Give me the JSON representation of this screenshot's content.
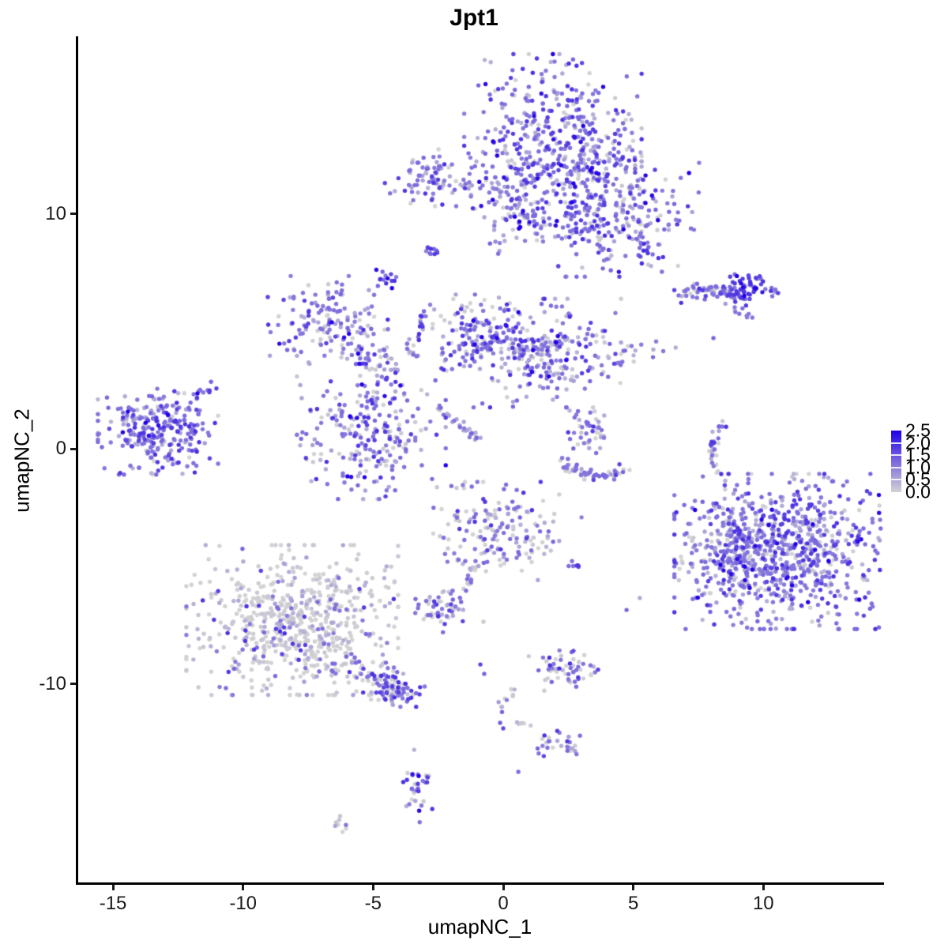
{
  "title": "Jpt1",
  "axes": {
    "x": {
      "label": "umapNC_1",
      "ticks": [
        -15,
        -10,
        -5,
        0,
        5,
        10
      ],
      "range": [
        -16.3,
        14.6
      ]
    },
    "y": {
      "label": "umapNC_2",
      "ticks": [
        10,
        0,
        -10
      ],
      "range": [
        -18.5,
        17.5
      ]
    }
  },
  "legend": {
    "tick_values": [
      2.5,
      2.0,
      1.5,
      1.0,
      0.5,
      0.0
    ],
    "tick_labels": [
      "2.5",
      "2.0",
      "1.5",
      "1.0",
      "0.5",
      "0.0"
    ],
    "low_color": "#D3D3D3",
    "high_color": "#2100E8",
    "max": 2.5
  },
  "chart_data": {
    "type": "scatter",
    "title": "Jpt1",
    "xlabel": "umapNC_1",
    "ylabel": "umapNC_2",
    "xlim": [
      -16.3,
      14.6
    ],
    "ylim": [
      -18.5,
      17.5
    ],
    "grid": false,
    "legend_position": "right",
    "color_scale": {
      "low": "#D3D3D3",
      "high": "#2100E8",
      "domain": [
        0,
        2.5
      ]
    },
    "value_bins": {
      "grey": 0.03,
      "light": 0.5,
      "med": 1.15,
      "str": 1.8,
      "dark": 2.45
    },
    "point_radius": 2.7,
    "clusters": [
      {
        "name": "top-main-upper",
        "type": "blob",
        "center": [
          1.91,
          13.38
        ],
        "sd": [
          1.55,
          1.55
        ],
        "n": 340,
        "mix": {
          "grey": 0.13,
          "light": 0.22,
          "med": 0.41,
          "str": 0.2,
          "dark": 0.04
        }
      },
      {
        "name": "top-main-right",
        "type": "blob",
        "center": [
          4.34,
          9.85
        ],
        "sd": [
          1.45,
          1.15
        ],
        "n": 260,
        "mix": {
          "grey": 0.13,
          "light": 0.22,
          "med": 0.41,
          "str": 0.2,
          "dark": 0.04
        }
      },
      {
        "name": "top-main-lowerleft",
        "type": "blob",
        "center": [
          0.7,
          10.52
        ],
        "sd": [
          0.85,
          1.05
        ],
        "n": 120,
        "mix": {
          "grey": 0.13,
          "light": 0.22,
          "med": 0.41,
          "str": 0.2,
          "dark": 0.04
        }
      },
      {
        "name": "top-main-bridge",
        "type": "blob",
        "center": [
          2.98,
          11.87
        ],
        "sd": [
          0.95,
          0.9
        ],
        "n": 110,
        "mix": {
          "grey": 0.13,
          "light": 0.22,
          "med": 0.41,
          "str": 0.2,
          "dark": 0.04
        }
      },
      {
        "name": "top-left-small",
        "type": "blob",
        "center": [
          -2.79,
          11.53
        ],
        "sd": [
          0.8,
          0.55
        ],
        "n": 85,
        "mix": {
          "grey": 0.15,
          "light": 0.25,
          "med": 0.45,
          "str": 0.15
        }
      },
      {
        "name": "top-left-arm",
        "type": "line",
        "from": [
          -1.88,
          11.26
        ],
        "to": [
          0.55,
          10.92
        ],
        "jitter": 0.15,
        "n": 20,
        "mix": {
          "grey": 0.15,
          "light": 0.25,
          "med": 0.45,
          "str": 0.15
        }
      },
      {
        "name": "tiny-clump-a",
        "type": "blob",
        "center": [
          -2.79,
          8.47
        ],
        "sd": [
          0.15,
          0.12
        ],
        "n": 10,
        "mix": {
          "med": 0.5,
          "str": 0.5
        }
      },
      {
        "name": "tiny-clump-b",
        "type": "blob",
        "center": [
          -4.46,
          7.23
        ],
        "sd": [
          0.2,
          0.18
        ],
        "n": 14,
        "mix": {
          "med": 0.35,
          "str": 0.5,
          "dark": 0.15
        }
      },
      {
        "name": "right-band",
        "type": "line",
        "from": [
          6.62,
          6.59
        ],
        "to": [
          8.9,
          6.72
        ],
        "jitter": 0.18,
        "n": 55,
        "mix": {
          "grey": 0.15,
          "light": 0.2,
          "med": 0.45,
          "str": 0.2
        }
      },
      {
        "name": "right-band-knot",
        "type": "blob",
        "center": [
          9.44,
          6.76
        ],
        "sd": [
          0.55,
          0.32
        ],
        "n": 70,
        "mix": {
          "light": 0.06,
          "med": 0.32,
          "str": 0.48,
          "dark": 0.14
        }
      },
      {
        "name": "right-band-streak",
        "type": "line",
        "from": [
          8.84,
          5.92
        ],
        "to": [
          9.5,
          5.65
        ],
        "jitter": 0.08,
        "n": 9,
        "mix": {
          "grey": 0.1,
          "light": 0.4,
          "med": 0.5
        }
      },
      {
        "name": "center-nw-blob",
        "type": "blob",
        "center": [
          -6.74,
          5.48
        ],
        "sd": [
          1.05,
          0.85
        ],
        "n": 150,
        "mix": {
          "grey": 0.17,
          "light": 0.24,
          "med": 0.39,
          "str": 0.17,
          "dark": 0.03
        }
      },
      {
        "name": "center-nw-arm",
        "type": "line",
        "from": [
          -5.68,
          4.2
        ],
        "to": [
          -4.01,
          3.03
        ],
        "jitter": 0.3,
        "n": 45,
        "mix": {
          "grey": 0.17,
          "light": 0.24,
          "med": 0.39,
          "str": 0.17,
          "dark": 0.03
        }
      },
      {
        "name": "center-sw-blob",
        "type": "blob",
        "center": [
          -5.07,
          0.61
        ],
        "sd": [
          1.3,
          1.25
        ],
        "n": 240,
        "mix": {
          "grey": 0.17,
          "light": 0.24,
          "med": 0.39,
          "str": 0.17,
          "dark": 0.03
        }
      },
      {
        "name": "center-vert-arm",
        "type": "line",
        "from": [
          -3.46,
          3.97
        ],
        "to": [
          -3.25,
          5.92
        ],
        "jitter": 0.2,
        "n": 25,
        "mix": {
          "grey": 0.17,
          "light": 0.24,
          "med": 0.39,
          "str": 0.17,
          "dark": 0.03
        }
      },
      {
        "name": "center-diag-streak",
        "type": "line",
        "from": [
          -2.46,
          1.75
        ],
        "to": [
          -0.94,
          0.37
        ],
        "jitter": 0.07,
        "n": 30,
        "mix": {
          "grey": 0.1,
          "light": 0.55,
          "med": 0.35
        }
      },
      {
        "name": "center-ne-arm",
        "type": "line",
        "from": [
          -2.34,
          3.36
        ],
        "to": [
          -0.06,
          4.91
        ],
        "jitter": 0.25,
        "n": 35,
        "mix": {
          "grey": 0.17,
          "light": 0.24,
          "med": 0.39,
          "str": 0.17,
          "dark": 0.03
        }
      },
      {
        "name": "center-mid-blob",
        "type": "blob",
        "center": [
          -1.06,
          4.91
        ],
        "sd": [
          0.9,
          0.75
        ],
        "n": 110,
        "mix": {
          "grey": 0.17,
          "light": 0.24,
          "med": 0.39,
          "str": 0.17,
          "dark": 0.03
        }
      },
      {
        "name": "center-east-blob",
        "type": "blob",
        "center": [
          1.67,
          4.07
        ],
        "sd": [
          1.3,
          1.05
        ],
        "n": 250,
        "mix": {
          "grey": 0.17,
          "light": 0.24,
          "med": 0.39,
          "str": 0.17,
          "dark": 0.03
        }
      },
      {
        "name": "center-east-bridge",
        "type": "line",
        "from": [
          3.28,
          3.7
        ],
        "to": [
          6.53,
          4.37
        ],
        "jitter": 0.3,
        "n": 20,
        "mix": {
          "grey": 0.25,
          "light": 0.3,
          "med": 0.35,
          "str": 0.1
        }
      },
      {
        "name": "far-left-blob",
        "type": "blob",
        "center": [
          -13.27,
          0.77
        ],
        "sd": [
          1.05,
          0.85
        ],
        "n": 270,
        "mix": {
          "grey": 0.09,
          "light": 0.18,
          "med": 0.53,
          "str": 0.18,
          "dark": 0.02
        }
      },
      {
        "name": "far-left-tail",
        "type": "line",
        "from": [
          -11.9,
          2.12
        ],
        "to": [
          -11.14,
          2.69
        ],
        "jitter": 0.12,
        "n": 12,
        "mix": {
          "med": 0.6,
          "str": 0.3,
          "dark": 0.1
        }
      },
      {
        "name": "mid-crescent-top",
        "type": "blob",
        "center": [
          3.28,
          0.74
        ],
        "sd": [
          0.45,
          0.42
        ],
        "n": 45,
        "mix": {
          "grey": 0.28,
          "light": 0.2,
          "med": 0.42,
          "str": 0.1
        }
      },
      {
        "name": "mid-crescent-arc-a",
        "type": "line",
        "from": [
          2.16,
          -0.57
        ],
        "to": [
          3.37,
          -1.18
        ],
        "jitter": 0.15,
        "n": 30,
        "mix": {
          "grey": 0.28,
          "light": 0.2,
          "med": 0.42,
          "str": 0.1
        }
      },
      {
        "name": "mid-crescent-arc-b",
        "type": "line",
        "from": [
          3.37,
          -1.18
        ],
        "to": [
          4.71,
          -0.97
        ],
        "jitter": 0.15,
        "n": 28,
        "mix": {
          "grey": 0.28,
          "light": 0.2,
          "med": 0.42,
          "str": 0.1
        }
      },
      {
        "name": "thin-vertical-top",
        "type": "line",
        "from": [
          8.41,
          1.08
        ],
        "to": [
          7.99,
          -0.07
        ],
        "jitter": 0.1,
        "n": 20,
        "mix": {
          "grey": 0.3,
          "light": 0.15,
          "med": 0.35,
          "str": 0.2
        }
      },
      {
        "name": "thin-vertical-bottom",
        "type": "line",
        "from": [
          7.99,
          -0.07
        ],
        "to": [
          8.26,
          -1.11
        ],
        "jitter": 0.1,
        "n": 14,
        "mix": {
          "grey": 0.45,
          "light": 0.2,
          "med": 0.25,
          "str": 0.1
        }
      },
      {
        "name": "right-big-blob",
        "type": "blob",
        "center": [
          10.87,
          -4.37
        ],
        "sd": [
          1.95,
          1.5
        ],
        "n": 850,
        "mix": {
          "grey": 0.11,
          "light": 0.2,
          "med": 0.46,
          "str": 0.2,
          "dark": 0.03
        }
      },
      {
        "name": "right-big-west-edge",
        "type": "blob",
        "center": [
          8.59,
          -4.44
        ],
        "sd": [
          0.6,
          1.4
        ],
        "n": 90,
        "mix": {
          "grey": 0.25,
          "light": 0.22,
          "med": 0.38,
          "str": 0.13,
          "dark": 0.02
        }
      },
      {
        "name": "grey-big-blob",
        "type": "blob",
        "center": [
          -8.11,
          -7.29
        ],
        "sd": [
          1.85,
          1.45
        ],
        "n": 650,
        "mix": {
          "grey": 0.76,
          "light": 0.13,
          "med": 0.09,
          "str": 0.02
        }
      },
      {
        "name": "grey-tail",
        "type": "line",
        "from": [
          -5.98,
          -9.31
        ],
        "to": [
          -4.01,
          -10.42
        ],
        "jitter": 0.35,
        "n": 70,
        "mix": {
          "grey": 0.45,
          "light": 0.15,
          "med": 0.28,
          "str": 0.12
        }
      },
      {
        "name": "grey-tail-end",
        "type": "blob",
        "center": [
          -4.01,
          -10.32
        ],
        "sd": [
          0.45,
          0.3
        ],
        "n": 45,
        "mix": {
          "grey": 0.2,
          "light": 0.15,
          "med": 0.4,
          "str": 0.25
        }
      },
      {
        "name": "bottom-center-blob",
        "type": "blob",
        "center": [
          -0.27,
          -3.5
        ],
        "sd": [
          1.1,
          0.95
        ],
        "n": 170,
        "mix": {
          "grey": 0.38,
          "light": 0.2,
          "med": 0.34,
          "str": 0.08
        }
      },
      {
        "name": "bottom-center-tail",
        "type": "line",
        "from": [
          -1.06,
          -4.91
        ],
        "to": [
          -1.49,
          -5.98
        ],
        "jitter": 0.12,
        "n": 12,
        "mix": {
          "grey": 0.5,
          "light": 0.1,
          "med": 0.4
        }
      },
      {
        "name": "bottom-center-small",
        "type": "blob",
        "center": [
          -2.28,
          -6.82
        ],
        "sd": [
          0.5,
          0.45
        ],
        "n": 55,
        "mix": {
          "grey": 0.3,
          "light": 0.15,
          "med": 0.45,
          "str": 0.1
        }
      },
      {
        "name": "bottom-center-streak",
        "type": "line",
        "from": [
          2.58,
          -4.91
        ],
        "to": [
          3.19,
          -5.08
        ],
        "jitter": 0.07,
        "n": 7,
        "mix": {
          "med": 0.5,
          "str": 0.5
        }
      },
      {
        "name": "lower-small-a",
        "type": "blob",
        "center": [
          2.52,
          -9.41
        ],
        "sd": [
          0.7,
          0.4
        ],
        "n": 55,
        "mix": {
          "grey": 0.48,
          "light": 0.12,
          "med": 0.32,
          "str": 0.08
        }
      },
      {
        "name": "lower-y-streak",
        "type": "line",
        "from": [
          0.33,
          -10.15
        ],
        "to": [
          -0.15,
          -11.16
        ],
        "jitter": 0.1,
        "n": 10,
        "mix": {
          "grey": 0.6,
          "light": 0.1,
          "med": 0.3
        }
      },
      {
        "name": "lower-grey-streak",
        "type": "line",
        "from": [
          0.52,
          -11.66
        ],
        "to": [
          1.31,
          -11.87
        ],
        "jitter": 0.06,
        "n": 7,
        "mix": {
          "grey": 0.8,
          "light": 0.2
        }
      },
      {
        "name": "lower-small-b",
        "type": "blob",
        "center": [
          2.1,
          -12.54
        ],
        "sd": [
          0.5,
          0.3
        ],
        "n": 28,
        "mix": {
          "grey": 0.35,
          "light": 0.1,
          "med": 0.35,
          "str": 0.2
        }
      },
      {
        "name": "bottom-vertical-small",
        "type": "blob",
        "center": [
          -3.37,
          -14.35
        ],
        "sd": [
          0.3,
          0.7
        ],
        "n": 32,
        "mix": {
          "grey": 0.22,
          "light": 0.15,
          "med": 0.42,
          "str": 0.16,
          "dark": 0.05
        }
      },
      {
        "name": "bottom-tiny",
        "type": "blob",
        "center": [
          -6.19,
          -15.97
        ],
        "sd": [
          0.25,
          0.18
        ],
        "n": 8,
        "mix": {
          "grey": 0.5,
          "light": 0.3,
          "med": 0.2
        }
      }
    ],
    "singles": [
      [
        2.7,
        11.29,
        2.5
      ],
      [
        2.76,
        11.16,
        2.35
      ],
      [
        -5.89,
        1.38,
        2.5
      ],
      [
        -5.62,
        1.31,
        2.4
      ],
      [
        9.66,
        6.82,
        2.4
      ],
      [
        9.96,
        6.66,
        2.25
      ],
      [
        8.08,
        4.71,
        1.3
      ],
      [
        8.35,
        -4.94,
        2.5
      ],
      [
        8.47,
        -5.18,
        2.35
      ],
      [
        -3.49,
        -13.85,
        2.3
      ],
      [
        2.7,
        -8.6,
        1.6
      ],
      [
        -0.88,
        -9.18,
        1.7
      ],
      [
        -0.73,
        -9.58,
        1.3
      ],
      [
        -0.12,
        -11.66,
        1.4
      ],
      [
        0.0,
        -11.9,
        1.6
      ],
      [
        0.58,
        -13.75,
        1.2
      ],
      [
        -0.76,
        -7.36,
        0.1
      ],
      [
        -0.3,
        8.81,
        0.9
      ],
      [
        4.74,
        -6.86,
        1.3
      ],
      [
        5.25,
        -6.35,
        0.5
      ],
      [
        3.01,
        -2.92,
        1.0
      ]
    ]
  }
}
